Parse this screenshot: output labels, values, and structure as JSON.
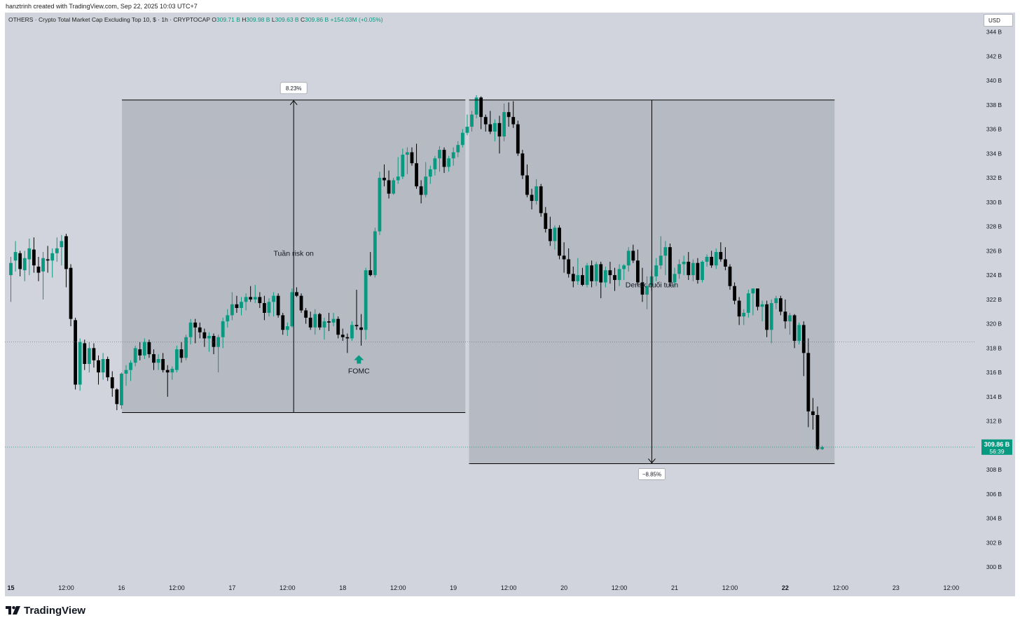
{
  "caption": "hanztrinh created with TradingView.com, Sep 22, 2025 10:03 UTC+7",
  "header": {
    "symbol": "OTHERS · Crypto Total Market Cap Excluding Top 10, $ · 1h · CRYPTOCAP",
    "o_label": "O",
    "o_value": "309.71 B",
    "h_label": "H",
    "h_value": "309.98 B",
    "l_label": "L",
    "l_value": "309.63 B",
    "c_label": "C",
    "c_value": "309.86 B",
    "change": "+154.03M (+0.05%)",
    "currency": "USD"
  },
  "brand": "TradingView",
  "colors": {
    "up": "#089981",
    "down": "#000000",
    "background": "#d1d4dc",
    "box": "#b2b5be",
    "price_tag": "#089981"
  },
  "price_tag": {
    "value": "309.86 B",
    "countdown": "56:39"
  },
  "chart_data": {
    "type": "candlestick",
    "timeframe": "1h",
    "y_unit": "B USD",
    "ylim": [
      299,
      345
    ],
    "y_ticks": [
      300,
      302,
      304,
      306,
      308,
      310,
      312,
      314,
      316,
      318,
      320,
      322,
      324,
      326,
      328,
      330,
      332,
      334,
      336,
      338,
      340,
      342,
      344
    ],
    "y_tick_labels": [
      "300 B",
      "302 B",
      "304 B",
      "306 B",
      "308 B",
      "310 B",
      "312 B",
      "314 B",
      "316 B",
      "318 B",
      "320 B",
      "322 B",
      "324 B",
      "326 B",
      "328 B",
      "330 B",
      "332 B",
      "334 B",
      "336 B",
      "338 B",
      "340 B",
      "342 B",
      "344 B"
    ],
    "x_tick_labels": [
      "15",
      "12:00",
      "16",
      "12:00",
      "17",
      "12:00",
      "18",
      "12:00",
      "19",
      "12:00",
      "20",
      "12:00",
      "21",
      "12:00",
      "22",
      "12:00",
      "23",
      "12:00"
    ],
    "x_tick_hours": [
      0,
      12,
      24,
      36,
      48,
      60,
      72,
      84,
      96,
      108,
      120,
      132,
      144,
      156,
      168,
      180,
      192,
      204
    ],
    "bold_x_ticks": [
      "15",
      "22"
    ],
    "candles": [
      [
        324.0,
        325.5,
        321.8,
        325.0
      ],
      [
        325.2,
        326.8,
        324.3,
        325.9
      ],
      [
        325.8,
        326.0,
        323.9,
        324.5
      ],
      [
        324.4,
        326.0,
        323.5,
        325.4
      ],
      [
        325.3,
        327.0,
        324.0,
        326.2
      ],
      [
        326.1,
        327.1,
        324.2,
        324.8
      ],
      [
        324.7,
        325.5,
        323.5,
        324.2
      ],
      [
        324.3,
        325.9,
        322.0,
        325.4
      ],
      [
        325.3,
        326.4,
        324.2,
        325.2
      ],
      [
        325.2,
        326.2,
        323.8,
        325.8
      ],
      [
        325.8,
        327.1,
        325.1,
        326.2
      ],
      [
        326.3,
        327.3,
        324.8,
        326.8
      ],
      [
        327.2,
        327.4,
        323.0,
        324.5
      ],
      [
        324.6,
        324.9,
        319.8,
        320.4
      ],
      [
        320.3,
        320.5,
        314.6,
        315.0
      ],
      [
        315.0,
        318.8,
        314.5,
        318.5
      ],
      [
        318.4,
        318.7,
        316.2,
        316.7
      ],
      [
        316.7,
        318.5,
        316.0,
        318.0
      ],
      [
        318.0,
        318.4,
        316.4,
        317.0
      ],
      [
        317.0,
        317.4,
        315.0,
        316.0
      ],
      [
        316.0,
        317.6,
        315.4,
        317.1
      ],
      [
        317.1,
        317.3,
        315.3,
        315.6
      ],
      [
        315.6,
        316.1,
        314.0,
        314.7
      ],
      [
        314.6,
        314.7,
        312.9,
        313.4
      ],
      [
        313.3,
        316.0,
        313.0,
        315.9
      ],
      [
        315.9,
        316.6,
        314.9,
        316.2
      ],
      [
        316.2,
        317.0,
        315.3,
        316.8
      ],
      [
        316.8,
        318.2,
        316.5,
        318.0
      ],
      [
        317.9,
        318.5,
        317.0,
        317.4
      ],
      [
        317.4,
        318.8,
        317.1,
        318.5
      ],
      [
        318.5,
        318.7,
        317.2,
        317.5
      ],
      [
        317.5,
        317.9,
        316.2,
        316.8
      ],
      [
        316.8,
        317.5,
        316.2,
        317.1
      ],
      [
        317.1,
        317.6,
        316.0,
        316.2
      ],
      [
        316.2,
        316.6,
        314.0,
        316.0
      ],
      [
        316.0,
        316.5,
        315.4,
        316.3
      ],
      [
        316.2,
        318.2,
        316.0,
        317.9
      ],
      [
        317.9,
        318.5,
        316.8,
        317.2
      ],
      [
        317.2,
        319.1,
        317.0,
        318.9
      ],
      [
        318.9,
        320.4,
        318.3,
        320.1
      ],
      [
        320.1,
        320.4,
        318.4,
        319.7
      ],
      [
        319.7,
        320.1,
        318.8,
        319.3
      ],
      [
        319.3,
        319.6,
        318.1,
        318.8
      ],
      [
        318.8,
        319.3,
        317.7,
        319.0
      ],
      [
        319.0,
        319.2,
        317.5,
        318.1
      ],
      [
        318.1,
        319.1,
        316.0,
        318.9
      ],
      [
        318.9,
        320.5,
        318.0,
        320.2
      ],
      [
        320.2,
        321.2,
        319.7,
        320.7
      ],
      [
        320.7,
        322.6,
        320.3,
        321.6
      ],
      [
        321.6,
        322.3,
        320.9,
        321.3
      ],
      [
        321.3,
        322.2,
        320.7,
        321.8
      ],
      [
        321.8,
        322.5,
        321.1,
        322.2
      ],
      [
        322.2,
        323.1,
        321.8,
        322.0
      ],
      [
        322.0,
        323.2,
        321.7,
        322.2
      ],
      [
        322.2,
        322.6,
        321.3,
        321.7
      ],
      [
        321.7,
        322.3,
        320.3,
        320.9
      ],
      [
        320.9,
        322.1,
        320.6,
        321.8
      ],
      [
        321.8,
        322.6,
        320.6,
        322.3
      ],
      [
        322.3,
        322.5,
        320.5,
        320.7
      ],
      [
        320.7,
        320.9,
        319.1,
        319.5
      ],
      [
        319.5,
        320.1,
        319.0,
        319.8
      ],
      [
        319.8,
        322.9,
        319.7,
        322.6
      ],
      [
        322.6,
        323.0,
        322.2,
        322.3
      ],
      [
        322.3,
        322.5,
        320.9,
        321.1
      ],
      [
        321.1,
        321.3,
        320.0,
        320.5
      ],
      [
        320.5,
        321.0,
        319.5,
        319.7
      ],
      [
        319.7,
        321.2,
        319.1,
        320.8
      ],
      [
        320.8,
        320.9,
        319.5,
        319.7
      ],
      [
        319.7,
        320.5,
        318.7,
        320.2
      ],
      [
        320.2,
        320.9,
        319.4,
        320.1
      ],
      [
        320.1,
        320.9,
        319.8,
        320.4
      ],
      [
        320.4,
        320.6,
        318.8,
        319.1
      ],
      [
        319.1,
        319.6,
        318.6,
        318.9
      ],
      [
        318.9,
        319.2,
        317.6,
        318.8
      ],
      [
        318.8,
        320.2,
        318.6,
        319.9
      ],
      [
        319.9,
        322.8,
        319.5,
        319.8
      ],
      [
        319.7,
        320.8,
        318.2,
        319.5
      ],
      [
        319.5,
        324.6,
        318.7,
        324.4
      ],
      [
        324.4,
        325.9,
        323.9,
        324.0
      ],
      [
        324.0,
        327.9,
        323.8,
        327.6
      ],
      [
        327.6,
        332.5,
        327.3,
        332.0
      ],
      [
        332.0,
        333.1,
        331.3,
        331.8
      ],
      [
        331.8,
        332.6,
        330.3,
        330.7
      ],
      [
        330.7,
        332.0,
        330.6,
        331.8
      ],
      [
        331.8,
        333.7,
        331.5,
        332.1
      ],
      [
        332.1,
        334.4,
        331.9,
        333.9
      ],
      [
        333.9,
        334.5,
        332.3,
        334.1
      ],
      [
        334.1,
        334.5,
        333.0,
        333.2
      ],
      [
        333.2,
        334.8,
        331.1,
        331.3
      ],
      [
        331.3,
        331.8,
        329.9,
        330.6
      ],
      [
        330.6,
        333.3,
        330.4,
        332.1
      ],
      [
        332.1,
        333.0,
        331.5,
        332.7
      ],
      [
        332.7,
        333.8,
        332.2,
        333.6
      ],
      [
        333.6,
        334.6,
        332.5,
        334.3
      ],
      [
        334.3,
        334.5,
        332.4,
        332.9
      ],
      [
        332.9,
        333.8,
        332.5,
        333.6
      ],
      [
        333.6,
        334.5,
        333.0,
        334.1
      ],
      [
        334.1,
        335.0,
        333.7,
        334.7
      ],
      [
        334.7,
        336.0,
        334.5,
        335.7
      ],
      [
        335.7,
        337.2,
        335.5,
        336.2
      ],
      [
        336.2,
        337.5,
        335.8,
        337.2
      ],
      [
        337.2,
        338.8,
        336.9,
        338.6
      ],
      [
        338.6,
        338.7,
        336.0,
        337.0
      ],
      [
        337.0,
        337.2,
        335.8,
        336.4
      ],
      [
        336.4,
        337.5,
        335.6,
        335.8
      ],
      [
        335.8,
        336.8,
        335.0,
        336.5
      ],
      [
        336.5,
        337.1,
        334.0,
        335.4
      ],
      [
        335.4,
        338.1,
        335.0,
        337.4
      ],
      [
        337.4,
        338.2,
        336.2,
        337.0
      ],
      [
        337.0,
        338.3,
        336.1,
        336.4
      ],
      [
        336.4,
        336.7,
        333.8,
        334.0
      ],
      [
        334.0,
        334.3,
        331.9,
        332.2
      ],
      [
        332.2,
        333.1,
        330.4,
        330.6
      ],
      [
        330.6,
        331.1,
        329.4,
        330.1
      ],
      [
        330.1,
        331.9,
        329.8,
        331.3
      ],
      [
        331.3,
        331.5,
        328.8,
        329.1
      ],
      [
        329.1,
        329.6,
        327.5,
        327.8
      ],
      [
        327.8,
        328.8,
        326.4,
        326.8
      ],
      [
        326.8,
        328.1,
        326.1,
        327.9
      ],
      [
        327.9,
        328.1,
        325.3,
        325.6
      ],
      [
        325.6,
        326.7,
        324.2,
        325.3
      ],
      [
        325.3,
        326.2,
        323.8,
        324.1
      ],
      [
        324.1,
        324.7,
        323.0,
        323.5
      ],
      [
        323.5,
        325.4,
        323.2,
        324.0
      ],
      [
        324.0,
        324.6,
        323.1,
        323.2
      ],
      [
        323.2,
        325.0,
        323.0,
        324.8
      ],
      [
        324.8,
        325.2,
        323.0,
        323.5
      ],
      [
        323.5,
        325.1,
        323.1,
        324.9
      ],
      [
        324.9,
        325.1,
        322.1,
        323.4
      ],
      [
        323.4,
        324.7,
        323.0,
        324.4
      ],
      [
        324.4,
        325.1,
        323.3,
        324.0
      ],
      [
        324.0,
        324.6,
        322.7,
        323.6
      ],
      [
        323.6,
        324.9,
        323.1,
        324.5
      ],
      [
        324.5,
        324.9,
        323.6,
        324.8
      ],
      [
        324.8,
        326.3,
        324.3,
        326.0
      ],
      [
        326.0,
        326.5,
        325.0,
        325.2
      ],
      [
        325.2,
        326.1,
        323.1,
        323.4
      ],
      [
        323.4,
        324.6,
        321.8,
        322.4
      ],
      [
        322.4,
        323.9,
        321.2,
        323.1
      ],
      [
        323.1,
        324.4,
        322.7,
        323.9
      ],
      [
        323.9,
        325.4,
        323.5,
        324.8
      ],
      [
        324.8,
        327.2,
        324.5,
        325.6
      ],
      [
        325.6,
        326.8,
        324.0,
        326.3
      ],
      [
        326.3,
        326.6,
        323.1,
        323.4
      ],
      [
        323.4,
        324.6,
        323.1,
        324.1
      ],
      [
        324.1,
        325.3,
        323.7,
        324.9
      ],
      [
        324.9,
        325.6,
        324.0,
        325.1
      ],
      [
        325.1,
        325.9,
        323.6,
        324.0
      ],
      [
        324.0,
        325.3,
        323.5,
        325.0
      ],
      [
        325.0,
        325.4,
        323.3,
        323.6
      ],
      [
        323.6,
        325.2,
        323.4,
        325.1
      ],
      [
        325.1,
        325.7,
        324.7,
        325.5
      ],
      [
        325.5,
        326.0,
        324.6,
        324.8
      ],
      [
        324.8,
        326.2,
        324.5,
        325.9
      ],
      [
        325.9,
        326.7,
        325.1,
        325.3
      ],
      [
        325.3,
        326.3,
        324.4,
        324.7
      ],
      [
        324.7,
        324.9,
        322.8,
        323.1
      ],
      [
        323.1,
        323.4,
        321.6,
        321.9
      ],
      [
        321.9,
        322.2,
        319.9,
        320.6
      ],
      [
        320.6,
        321.2,
        319.9,
        320.9
      ],
      [
        320.9,
        322.8,
        320.5,
        322.5
      ],
      [
        322.5,
        322.9,
        320.7,
        322.9
      ],
      [
        322.9,
        322.9,
        321.1,
        321.4
      ],
      [
        321.4,
        321.9,
        320.2,
        321.6
      ],
      [
        321.6,
        321.9,
        318.9,
        319.5
      ],
      [
        319.5,
        322.0,
        318.4,
        321.7
      ],
      [
        321.7,
        322.3,
        321.2,
        322.1
      ],
      [
        322.1,
        322.3,
        320.7,
        321.0
      ],
      [
        321.0,
        322.0,
        319.6,
        320.2
      ],
      [
        320.2,
        320.9,
        319.1,
        320.7
      ],
      [
        320.7,
        320.8,
        318.0,
        318.6
      ],
      [
        318.6,
        320.1,
        318.3,
        319.9
      ],
      [
        319.9,
        320.2,
        315.7,
        317.6
      ],
      [
        317.6,
        318.8,
        311.5,
        312.8
      ],
      [
        312.8,
        313.9,
        311.3,
        312.5
      ],
      [
        312.5,
        313.2,
        309.6,
        309.7
      ],
      [
        309.7,
        309.98,
        309.63,
        309.86
      ]
    ]
  },
  "annotations": {
    "box1_pct": "8.23%",
    "box1_label": "Tuần risk on",
    "box2_pct": "−8.85%",
    "box2_label": "Derisk cuối tuần",
    "fomc_label": "FOMC"
  }
}
